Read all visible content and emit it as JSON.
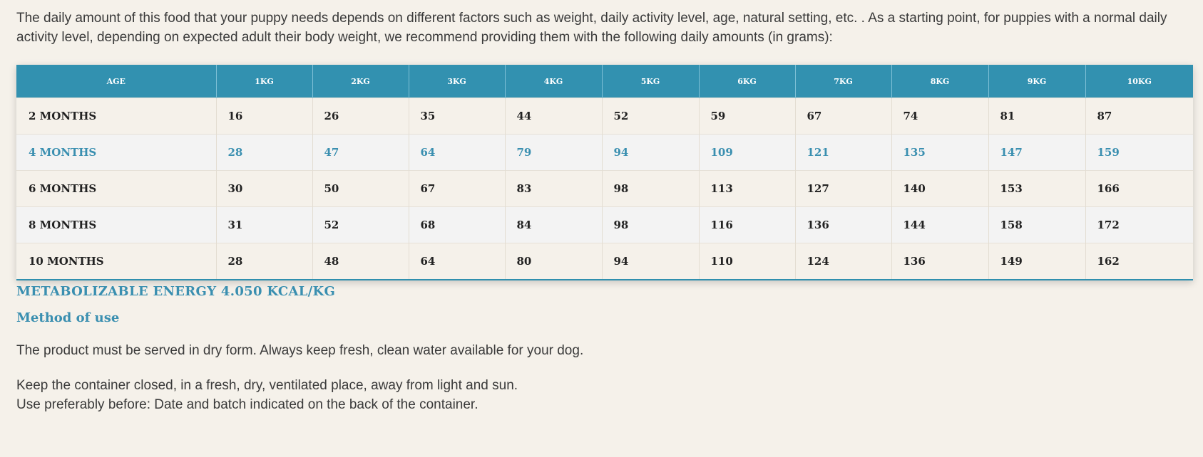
{
  "intro": "The daily amount of this food that your puppy needs depends on different factors such as weight, daily activity level, age, natural setting, etc. . As a starting point, for puppies with a normal daily activity level, depending on expected adult their body weight, we recommend providing them with the following daily amounts (in grams):",
  "table": {
    "headers": [
      "AGE",
      "1KG",
      "2KG",
      "3KG",
      "4KG",
      "5KG",
      "6KG",
      "7KG",
      "8KG",
      "9KG",
      "10KG"
    ],
    "rows": [
      [
        "2 MONTHS",
        "16",
        "26",
        "35",
        "44",
        "52",
        "59",
        "67",
        "74",
        "81",
        "87"
      ],
      [
        "4 MONTHS",
        "28",
        "47",
        "64",
        "79",
        "94",
        "109",
        "121",
        "135",
        "147",
        "159"
      ],
      [
        "6 MONTHS",
        "30",
        "50",
        "67",
        "83",
        "98",
        "113",
        "127",
        "140",
        "153",
        "166"
      ],
      [
        "8 MONTHS",
        "31",
        "52",
        "68",
        "84",
        "98",
        "116",
        "136",
        "144",
        "158",
        "172"
      ],
      [
        "10 MONTHS",
        "28",
        "48",
        "64",
        "80",
        "94",
        "110",
        "124",
        "136",
        "149",
        "162"
      ]
    ]
  },
  "energy": "METABOLIZABLE ENERGY 4.050 KCAL/KG",
  "method_title": "Method of use",
  "method_text": "The product must be served in dry form. Always keep fresh, clean water available for your dog.",
  "storage_line1": "Keep the container closed, in a fresh, dry, ventilated place, away from light and sun.",
  "storage_line2": "Use preferably before: Date and batch indicated on the back of the container.",
  "colors": {
    "header_bg": "#3291b0",
    "accent": "#3a8fb0",
    "page_bg": "#f5f1ea"
  }
}
